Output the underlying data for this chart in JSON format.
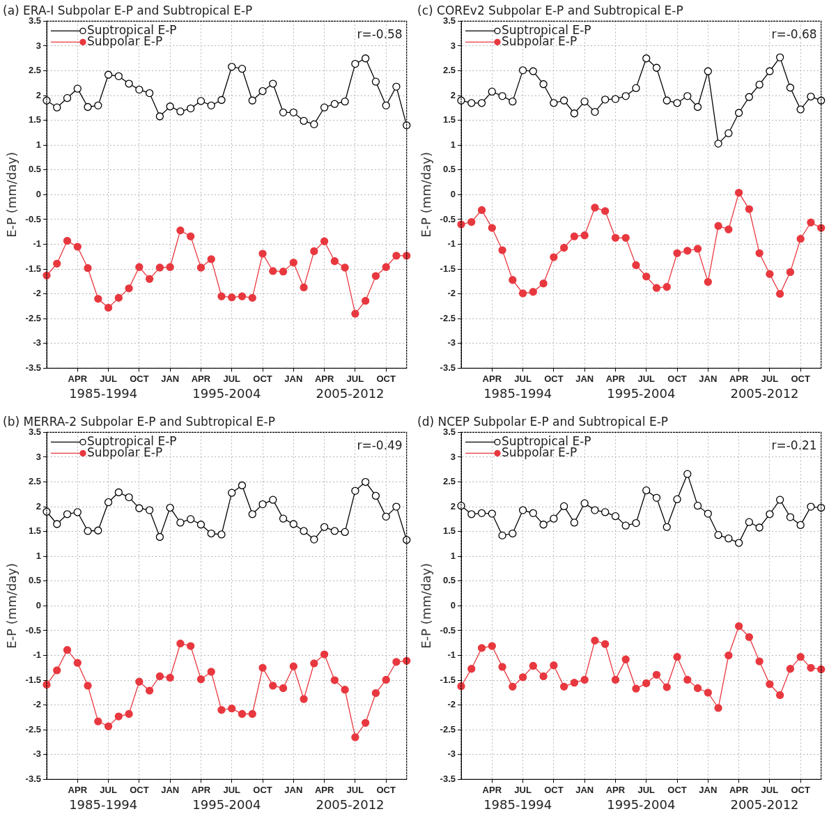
{
  "chart_data": [
    {
      "type": "line",
      "title": "(a) ERA-I Subpolar E-P and Subtropical E-P",
      "ylabel": "E-P (mm/day)",
      "categories": [
        null,
        null,
        null,
        "APR",
        null,
        null,
        "JUL",
        null,
        null,
        "OCT",
        null,
        null,
        "JAN",
        null,
        null,
        "APR",
        null,
        null,
        "JUL",
        null,
        null,
        "OCT",
        null,
        null,
        "JAN",
        null,
        null,
        "APR",
        null,
        null,
        "JUL",
        null,
        null,
        "OCT",
        null,
        null
      ],
      "series": [
        {
          "name": "Suptropical E-P",
          "color": "#000000",
          "values": [
            1.9,
            1.76,
            1.95,
            2.14,
            1.77,
            1.8,
            2.42,
            2.39,
            2.24,
            2.12,
            2.05,
            1.58,
            1.78,
            1.68,
            1.74,
            1.89,
            1.8,
            1.91,
            2.58,
            2.54,
            1.9,
            2.09,
            2.24,
            1.66,
            1.66,
            1.49,
            1.42,
            1.76,
            1.83,
            1.88,
            2.64,
            2.75,
            2.28,
            1.8,
            2.18,
            1.4
          ]
        },
        {
          "name": "Subpolar E-P",
          "color": "#e8383f",
          "values": [
            -1.63,
            -1.39,
            -0.93,
            -1.05,
            -1.48,
            -2.1,
            -2.28,
            -2.08,
            -1.89,
            -1.46,
            -1.7,
            -1.47,
            -1.46,
            -0.72,
            -0.84,
            -1.47,
            -1.3,
            -2.05,
            -2.07,
            -2.05,
            -2.08,
            -1.19,
            -1.54,
            -1.55,
            -1.37,
            -1.87,
            -1.14,
            -0.94,
            -1.34,
            -1.47,
            -2.4,
            -2.14,
            -1.64,
            -1.46,
            -1.23,
            -1.23
          ]
        }
      ],
      "ylim": [
        -3.5,
        3.5
      ],
      "yticks": [
        -3.5,
        -3,
        -2.5,
        -2,
        -1.5,
        -1,
        -0.5,
        0,
        0.5,
        1,
        1.5,
        2,
        2.5,
        3,
        3.5
      ],
      "grid": true,
      "legend": "top left",
      "marker": "circle",
      "annotations": [
        "r=-0.58",
        "1985-1994",
        "1995-2004",
        "2005-2012"
      ]
    },
    {
      "type": "line",
      "title": "(c) COREv2 Subpolar E-P and Subtropical E-P",
      "ylabel": "E-P (mm/day)",
      "categories": [
        null,
        null,
        null,
        "APR",
        null,
        null,
        "JUL",
        null,
        null,
        "OCT",
        null,
        null,
        "JAN",
        null,
        null,
        "APR",
        null,
        null,
        "JUL",
        null,
        null,
        "OCT",
        null,
        null,
        "JAN",
        null,
        null,
        "APR",
        null,
        null,
        "JUL",
        null,
        null,
        "OCT",
        null,
        null
      ],
      "series": [
        {
          "name": "Suptropical E-P",
          "color": "#000000",
          "values": [
            1.9,
            1.85,
            1.85,
            2.08,
            1.99,
            1.88,
            2.51,
            2.49,
            2.23,
            1.85,
            1.9,
            1.64,
            1.88,
            1.67,
            1.92,
            1.93,
            1.99,
            2.15,
            2.75,
            2.56,
            1.9,
            1.85,
            1.99,
            1.77,
            2.49,
            1.03,
            1.24,
            1.65,
            1.97,
            2.22,
            2.49,
            2.77,
            2.16,
            1.72,
            1.98,
            1.9
          ]
        },
        {
          "name": "Subpolar E-P",
          "color": "#e8383f",
          "values": [
            -0.6,
            -0.55,
            -0.31,
            -0.67,
            -1.12,
            -1.72,
            -1.99,
            -1.96,
            -1.79,
            -1.26,
            -1.07,
            -0.84,
            -0.82,
            -0.26,
            -0.33,
            -0.87,
            -0.87,
            -1.42,
            -1.65,
            -1.88,
            -1.86,
            -1.18,
            -1.13,
            -1.09,
            -1.76,
            -0.63,
            -0.7,
            0.04,
            -0.29,
            -1.18,
            -1.6,
            -2.0,
            -1.56,
            -0.89,
            -0.56,
            -0.67
          ]
        }
      ],
      "ylim": [
        -3.5,
        3.5
      ],
      "yticks": [
        -3.5,
        -3,
        -2.5,
        -2,
        -1.5,
        -1,
        -0.5,
        0,
        0.5,
        1,
        1.5,
        2,
        2.5,
        3,
        3.5
      ],
      "grid": true,
      "legend": "top left",
      "marker": "circle",
      "annotations": [
        "r=-0.68",
        "1985-1994",
        "1995-2004",
        "2005-2012"
      ]
    },
    {
      "type": "line",
      "title": "(b) MERRA-2 Subpolar E-P and Subtropical E-P",
      "ylabel": "E-P (mm/day)",
      "categories": [
        null,
        null,
        null,
        "APR",
        null,
        null,
        "JUL",
        null,
        null,
        "OCT",
        null,
        null,
        "JAN",
        null,
        null,
        "APR",
        null,
        null,
        "JUL",
        null,
        null,
        "OCT",
        null,
        null,
        "JAN",
        null,
        null,
        "APR",
        null,
        null,
        "JUL",
        null,
        null,
        "OCT",
        null,
        null
      ],
      "series": [
        {
          "name": "Suptropical E-P",
          "color": "#000000",
          "values": [
            1.9,
            1.65,
            1.85,
            1.89,
            1.51,
            1.52,
            2.09,
            2.29,
            2.19,
            1.97,
            1.93,
            1.39,
            1.98,
            1.68,
            1.75,
            1.64,
            1.46,
            1.44,
            2.28,
            2.43,
            1.85,
            2.05,
            2.14,
            1.76,
            1.65,
            1.51,
            1.34,
            1.59,
            1.51,
            1.49,
            2.32,
            2.5,
            2.22,
            1.8,
            2.0,
            1.33
          ]
        },
        {
          "name": "Subpolar E-P",
          "color": "#e8383f",
          "values": [
            -1.59,
            -1.3,
            -0.89,
            -1.15,
            -1.61,
            -2.33,
            -2.43,
            -2.23,
            -2.18,
            -1.53,
            -1.71,
            -1.42,
            -1.45,
            -0.76,
            -0.81,
            -1.48,
            -1.33,
            -2.1,
            -2.07,
            -2.18,
            -2.18,
            -1.25,
            -1.61,
            -1.66,
            -1.22,
            -1.88,
            -1.16,
            -0.98,
            -1.5,
            -1.69,
            -2.65,
            -2.36,
            -1.76,
            -1.49,
            -1.13,
            -1.11
          ]
        }
      ],
      "ylim": [
        -3.5,
        3.5
      ],
      "yticks": [
        -3.5,
        -3,
        -2.5,
        -2,
        -1.5,
        -1,
        -0.5,
        0,
        0.5,
        1,
        1.5,
        2,
        2.5,
        3,
        3.5
      ],
      "grid": true,
      "legend": "top left",
      "marker": "circle",
      "annotations": [
        "r=-0.49",
        "1985-1994",
        "1995-2004",
        "2005-2012"
      ]
    },
    {
      "type": "line",
      "title": "(d) NCEP Subpolar E-P and Subtropical E-P",
      "ylabel": "E-P (mm/day)",
      "categories": [
        null,
        null,
        null,
        "APR",
        null,
        null,
        "JUL",
        null,
        null,
        "OCT",
        null,
        null,
        "JAN",
        null,
        null,
        "APR",
        null,
        null,
        "JUL",
        null,
        null,
        "OCT",
        null,
        null,
        "JAN",
        null,
        null,
        "APR",
        null,
        null,
        "JUL",
        null,
        null,
        "OCT",
        null,
        null
      ],
      "series": [
        {
          "name": "Suptropical E-P",
          "color": "#000000",
          "values": [
            2.02,
            1.85,
            1.87,
            1.86,
            1.42,
            1.46,
            1.93,
            1.87,
            1.64,
            1.76,
            2.01,
            1.68,
            2.07,
            1.93,
            1.89,
            1.81,
            1.62,
            1.67,
            2.33,
            2.18,
            1.59,
            2.15,
            2.66,
            2.02,
            1.86,
            1.43,
            1.36,
            1.27,
            1.69,
            1.58,
            1.85,
            2.14,
            1.79,
            1.63,
            2.0,
            1.98
          ]
        },
        {
          "name": "Subpolar E-P",
          "color": "#e8383f",
          "values": [
            -1.62,
            -1.27,
            -0.85,
            -0.81,
            -1.23,
            -1.63,
            -1.44,
            -1.21,
            -1.42,
            -1.2,
            -1.63,
            -1.55,
            -1.49,
            -0.7,
            -0.77,
            -1.49,
            -1.08,
            -1.67,
            -1.56,
            -1.39,
            -1.64,
            -1.03,
            -1.49,
            -1.66,
            -1.75,
            -2.06,
            -1.0,
            -0.41,
            -0.63,
            -1.12,
            -1.58,
            -1.8,
            -1.27,
            -1.03,
            -1.25,
            -1.28
          ]
        }
      ],
      "ylim": [
        -3.5,
        3.5
      ],
      "yticks": [
        -3.5,
        -3,
        -2.5,
        -2,
        -1.5,
        -1,
        -0.5,
        0,
        0.5,
        1,
        1.5,
        2,
        2.5,
        3,
        3.5
      ],
      "grid": true,
      "legend": "top left",
      "marker": "circle",
      "annotations": [
        "r=-0.21",
        "1985-1994",
        "1995-2004",
        "2005-2012"
      ]
    }
  ]
}
